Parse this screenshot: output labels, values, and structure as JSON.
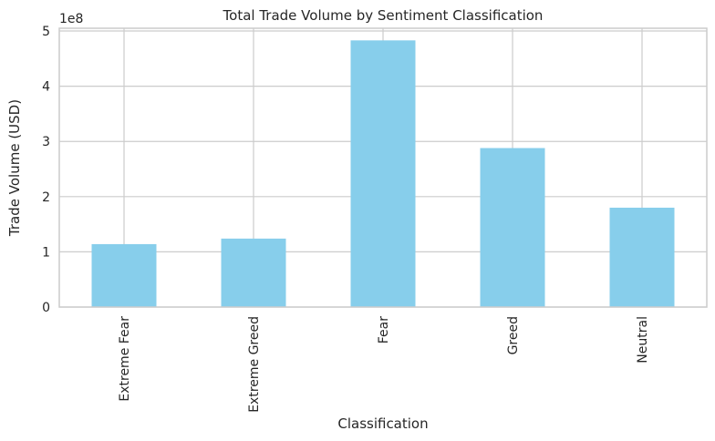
{
  "chart_data": {
    "type": "bar",
    "title": "Total Trade Volume by Sentiment Classification",
    "xlabel": "Classification",
    "ylabel": "Trade Volume (USD)",
    "y_offset_label": "1e8",
    "categories": [
      "Extreme Fear",
      "Extreme Greed",
      "Fear",
      "Greed",
      "Neutral"
    ],
    "values": [
      1.14,
      1.24,
      4.83,
      2.88,
      1.8
    ],
    "value_multiplier": 100000000,
    "ylim": [
      0,
      5.05
    ],
    "yticks": [
      0,
      1,
      2,
      3,
      4,
      5
    ],
    "ytick_labels": [
      "0",
      "1",
      "2",
      "3",
      "4",
      "5"
    ],
    "grid": true,
    "bar_color": "#87ceeb",
    "grid_color": "#cccccc",
    "spine_color": "#cccccc"
  }
}
